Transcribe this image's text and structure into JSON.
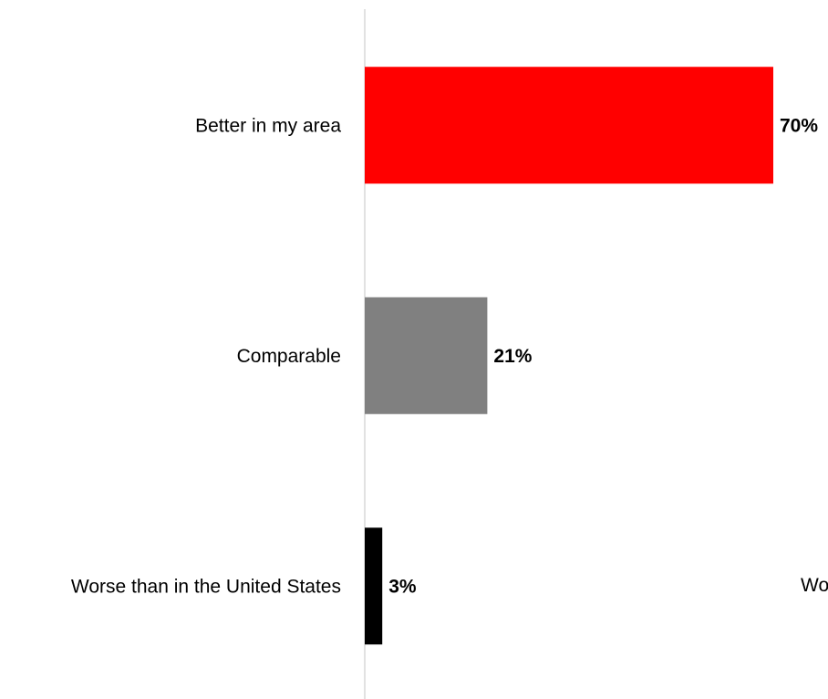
{
  "chart_data": {
    "type": "bar",
    "orientation": "horizontal",
    "categories": [
      "Better in my area",
      "Comparable",
      "Worse than in the United States"
    ],
    "values": [
      70,
      21,
      3
    ],
    "data_labels": [
      "70%",
      "21%",
      "3%"
    ],
    "colors": [
      "#ff0000",
      "#808080",
      "#000000"
    ],
    "xlim": [
      0,
      70
    ],
    "grid": false,
    "legend": "none",
    "title": "",
    "xlabel": "",
    "ylabel": ""
  },
  "fragments": {
    "right_edge_text": "Wo"
  }
}
